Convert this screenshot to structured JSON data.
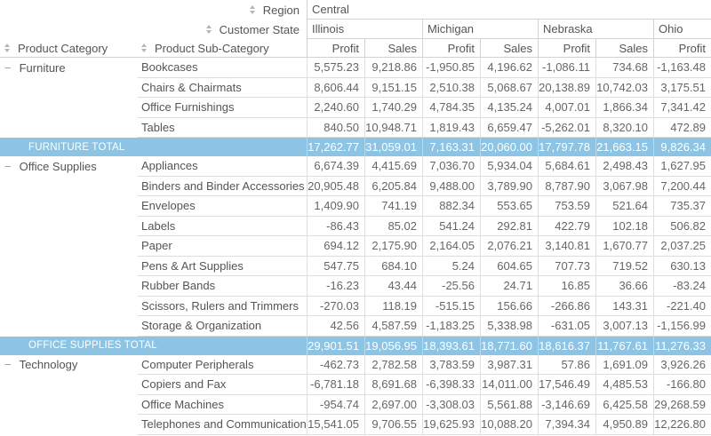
{
  "pivot": {
    "region_field": "Region",
    "region_value": "Central",
    "state_field": "Customer State",
    "category_field": "Product Category",
    "subcategory_field": "Product Sub-Category",
    "collapse_glyph": "−",
    "states": [
      {
        "name": "Illinois",
        "span": 2
      },
      {
        "name": "Michigan",
        "span": 2
      },
      {
        "name": "Nebraska",
        "span": 2
      },
      {
        "name": "Ohio",
        "span": 1
      }
    ],
    "measure_labels": [
      "Profit",
      "Sales",
      "Profit",
      "Sales",
      "Profit",
      "Sales",
      "Profit"
    ],
    "groups": [
      {
        "category": "Furniture",
        "rows": [
          {
            "label": "Bookcases",
            "values": [
              "5,575.23",
              "9,218.86",
              "-1,950.85",
              "4,196.62",
              "-1,086.11",
              "734.68",
              "-1,163.48"
            ]
          },
          {
            "label": "Chairs & Chairmats",
            "values": [
              "8,606.44",
              "9,151.15",
              "2,510.38",
              "5,068.67",
              "20,138.89",
              "10,742.03",
              "3,175.51"
            ]
          },
          {
            "label": "Office Furnishings",
            "values": [
              "2,240.60",
              "1,740.29",
              "4,784.35",
              "4,135.24",
              "4,007.01",
              "1,866.34",
              "7,341.42"
            ]
          },
          {
            "label": "Tables",
            "values": [
              "840.50",
              "10,948.71",
              "1,819.43",
              "6,659.47",
              "-5,262.01",
              "8,320.10",
              "472.89"
            ]
          }
        ],
        "total_label": "FURNITURE TOTAL",
        "total_values": [
          "17,262.77",
          "31,059.01",
          "7,163.31",
          "20,060.00",
          "17,797.78",
          "21,663.15",
          "9,826.34"
        ]
      },
      {
        "category": "Office Supplies",
        "rows": [
          {
            "label": "Appliances",
            "values": [
              "6,674.39",
              "4,415.69",
              "7,036.70",
              "5,934.04",
              "5,684.61",
              "2,498.43",
              "1,627.95"
            ]
          },
          {
            "label": "Binders and Binder Accessories",
            "values": [
              "20,905.48",
              "6,205.84",
              "9,488.00",
              "3,789.90",
              "8,787.90",
              "3,067.98",
              "7,200.44"
            ]
          },
          {
            "label": "Envelopes",
            "values": [
              "1,409.90",
              "741.19",
              "882.34",
              "553.65",
              "753.59",
              "521.64",
              "735.37"
            ]
          },
          {
            "label": "Labels",
            "values": [
              "-86.43",
              "85.02",
              "541.24",
              "292.81",
              "422.79",
              "102.18",
              "506.82"
            ]
          },
          {
            "label": "Paper",
            "values": [
              "694.12",
              "2,175.90",
              "2,164.05",
              "2,076.21",
              "3,140.81",
              "1,670.77",
              "2,037.25"
            ]
          },
          {
            "label": "Pens & Art Supplies",
            "values": [
              "547.75",
              "684.10",
              "5.24",
              "604.65",
              "707.73",
              "719.52",
              "630.13"
            ]
          },
          {
            "label": "Rubber Bands",
            "values": [
              "-16.23",
              "43.44",
              "-25.56",
              "24.71",
              "16.85",
              "36.66",
              "-83.24"
            ]
          },
          {
            "label": "Scissors, Rulers and Trimmers",
            "values": [
              "-270.03",
              "118.19",
              "-515.15",
              "156.66",
              "-266.86",
              "143.31",
              "-221.40"
            ]
          },
          {
            "label": "Storage & Organization",
            "values": [
              "42.56",
              "4,587.59",
              "-1,183.25",
              "5,338.98",
              "-631.05",
              "3,007.13",
              "-1,156.99"
            ]
          }
        ],
        "total_label": "OFFICE SUPPLIES TOTAL",
        "total_values": [
          "29,901.51",
          "19,056.95",
          "18,393.61",
          "18,771.60",
          "18,616.37",
          "11,767.61",
          "11,276.33"
        ]
      },
      {
        "category": "Technology",
        "rows": [
          {
            "label": "Computer Peripherals",
            "values": [
              "-462.73",
              "2,782.58",
              "3,783.59",
              "3,987.31",
              "57.86",
              "1,691.09",
              "3,926.26"
            ]
          },
          {
            "label": "Copiers and Fax",
            "values": [
              "-6,781.18",
              "8,691.68",
              "-6,398.33",
              "14,011.00",
              "17,546.49",
              "4,485.53",
              "-166.80"
            ]
          },
          {
            "label": "Office Machines",
            "values": [
              "-954.74",
              "2,697.00",
              "-3,308.03",
              "5,561.88",
              "-3,146.69",
              "6,425.58",
              "29,268.59"
            ]
          },
          {
            "label": "Telephones and Communication",
            "values": [
              "15,541.05",
              "9,706.55",
              "19,625.93",
              "10,088.20",
              "7,394.34",
              "4,950.89",
              "12,226.80"
            ]
          }
        ]
      }
    ]
  },
  "colors": {
    "total_bg": "#8dc4e4",
    "total_text": "#ffffff",
    "border": "#d2d2d2",
    "border_light": "#dedede",
    "text": "#666666",
    "label_text": "#555555",
    "icon": "#b5b5b5"
  }
}
